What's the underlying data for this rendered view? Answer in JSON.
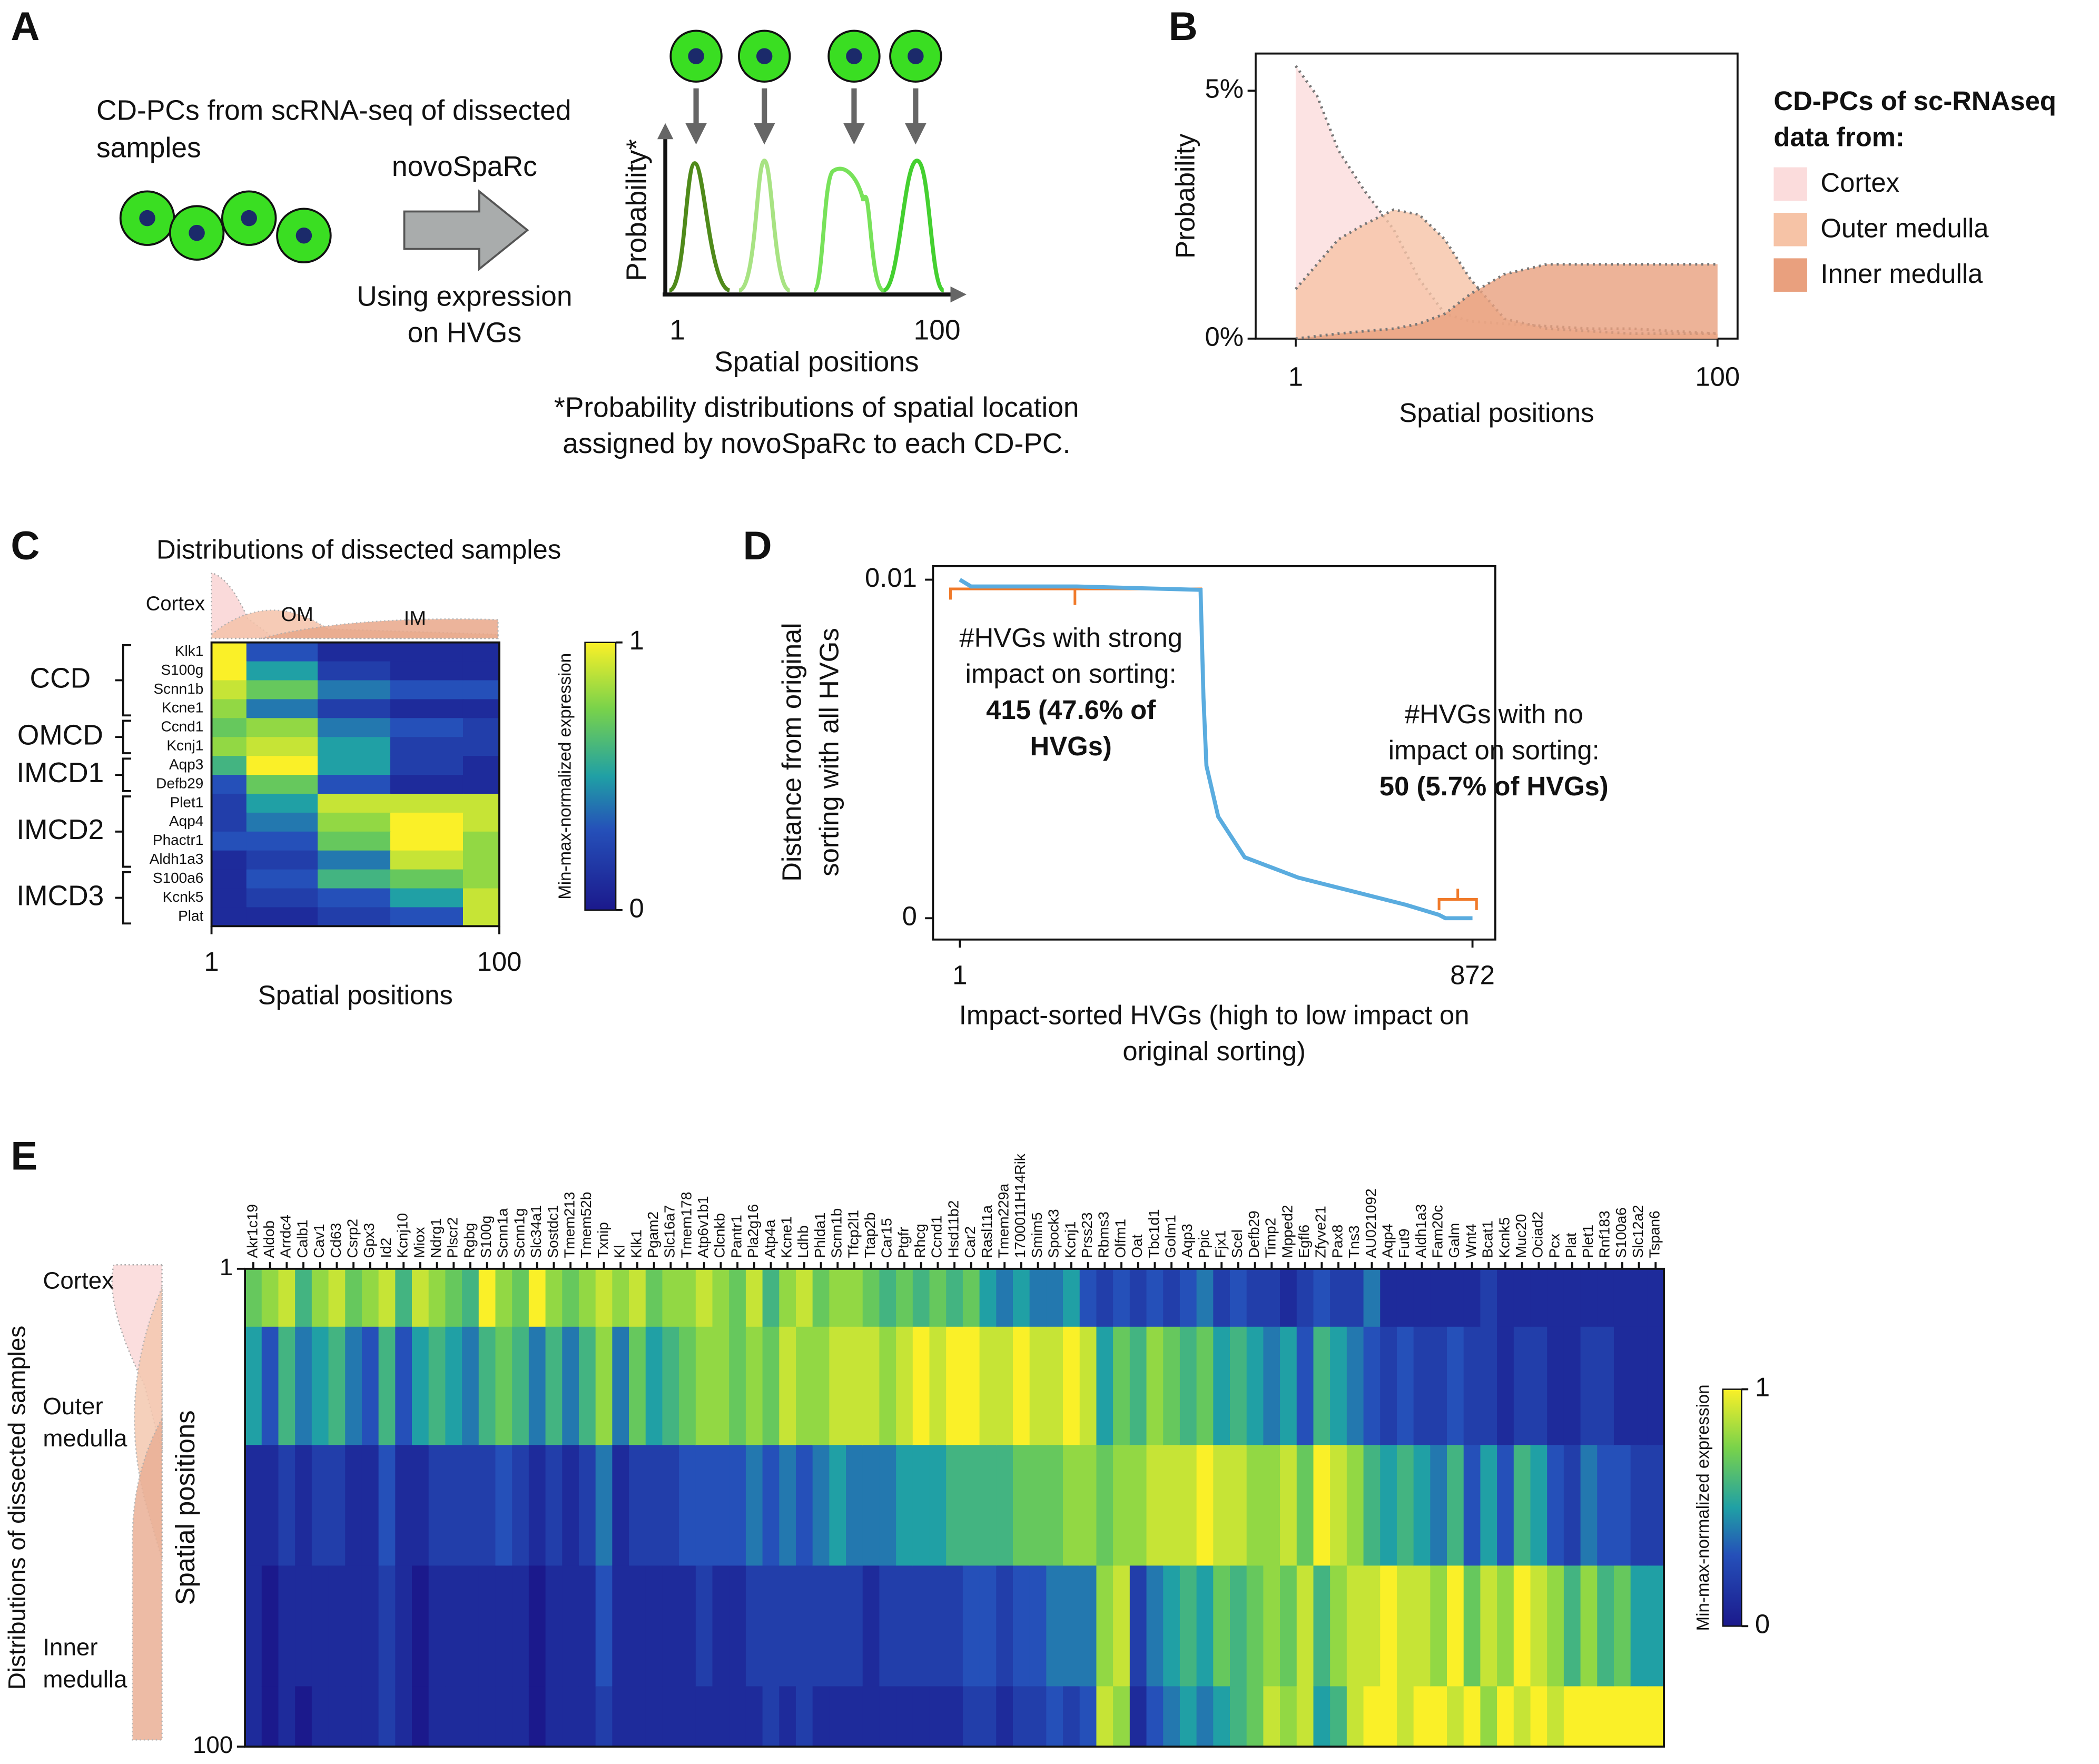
{
  "diagram": {
    "panel_label": "A",
    "cells_caption": [
      "CD-PCs from scRNA-seq of dissected",
      "samples"
    ],
    "method": "novoSpaRc",
    "method_caption": [
      "Using expression",
      "on HVGs"
    ],
    "axis_y_label": "Probability*",
    "axis_x_label": "Spatial positions",
    "axis_x_ticks": [
      "1",
      "100"
    ],
    "footnote": [
      "*Probability distributions of spatial location",
      "assigned by novoSpaRc to each CD-PC."
    ]
  },
  "chart_data": [
    {
      "panel_label": "B",
      "type": "area",
      "x": [
        1,
        6,
        11,
        17,
        24,
        30,
        36,
        42,
        50,
        60,
        70,
        80,
        90,
        100
      ],
      "series": [
        {
          "name": "Cortex",
          "color": "#fbdcdc",
          "values": [
            5.5,
            4.9,
            3.8,
            3.0,
            2.2,
            1.2,
            0.5,
            0.35,
            0.3,
            0.25,
            0.2,
            0.2,
            0.15,
            0.1
          ]
        },
        {
          "name": "Outer medulla",
          "color": "#f6c3a6",
          "values": [
            1.0,
            1.5,
            2.0,
            2.3,
            2.6,
            2.5,
            2.0,
            1.2,
            0.4,
            0.2,
            0.15,
            0.1,
            0.1,
            0.1
          ]
        },
        {
          "name": "Inner medulla",
          "color": "#e9a07e",
          "values": [
            0,
            0.05,
            0.1,
            0.15,
            0.2,
            0.3,
            0.5,
            0.9,
            1.3,
            1.5,
            1.5,
            1.5,
            1.5,
            1.5
          ]
        }
      ],
      "xlabel": "Spatial positions",
      "ylabel": "Probability",
      "xlim": [
        -8.4,
        104.7
      ],
      "ylim": [
        0,
        5.75
      ],
      "xticks": [
        1,
        100
      ],
      "yticks": [
        {
          "value": 0,
          "label": "0%"
        },
        {
          "value": 5,
          "label": "5%"
        }
      ],
      "legend_title": [
        "CD-PCs of sc-RNAseq",
        "data from:"
      ],
      "legend": "right"
    },
    {
      "panel_label": "C",
      "type": "heatmap",
      "title": "Distributions of dissected samples",
      "sample_labels": [
        "Cortex",
        "OM",
        "IM"
      ],
      "x": [
        1,
        25,
        50,
        75,
        100
      ],
      "xlim": [
        1,
        100
      ],
      "xticks": [
        1,
        100
      ],
      "xlabel": "Spatial positions",
      "groups": [
        {
          "name": "CCD",
          "genes": [
            "Klk1",
            "S100g",
            "Scnn1b",
            "Kcne1"
          ],
          "values": [
            [
              1,
              0.3,
              0.1,
              0.1,
              0.1
            ],
            [
              1,
              0.5,
              0.2,
              0.1,
              0.1
            ],
            [
              0.9,
              0.7,
              0.4,
              0.3,
              0.3
            ],
            [
              0.8,
              0.4,
              0.2,
              0.1,
              0.1
            ]
          ]
        },
        {
          "name": "OMCD",
          "genes": [
            "Ccnd1",
            "Kcnj1"
          ],
          "values": [
            [
              0.7,
              0.8,
              0.4,
              0.3,
              0.2
            ],
            [
              0.8,
              0.9,
              0.5,
              0.2,
              0.2
            ]
          ]
        },
        {
          "name": "IMCD1",
          "genes": [
            "Aqp3",
            "Defb29"
          ],
          "values": [
            [
              0.6,
              1,
              0.5,
              0.2,
              0.1
            ],
            [
              0.3,
              0.7,
              0.3,
              0.1,
              0.1
            ]
          ]
        },
        {
          "name": "IMCD2",
          "genes": [
            "Plet1",
            "Aqp4",
            "Phactr1",
            "Aldh1a3"
          ],
          "values": [
            [
              0.2,
              0.5,
              0.9,
              0.9,
              0.9
            ],
            [
              0.2,
              0.4,
              0.8,
              1,
              0.9
            ],
            [
              0.3,
              0.3,
              0.7,
              1,
              0.8
            ],
            [
              0.1,
              0.2,
              0.4,
              0.9,
              0.8
            ]
          ]
        },
        {
          "name": "IMCD3",
          "genes": [
            "S100a6",
            "Kcnk5",
            "Plat"
          ],
          "values": [
            [
              0.1,
              0.3,
              0.6,
              0.7,
              0.8
            ],
            [
              0.1,
              0.2,
              0.3,
              0.5,
              0.9
            ],
            [
              0.1,
              0.1,
              0.2,
              0.3,
              0.9
            ]
          ]
        }
      ],
      "colorbar": {
        "label": "Min-max-normalized expression",
        "ticks": [
          0,
          1
        ]
      }
    },
    {
      "panel_label": "D",
      "type": "line",
      "x": [
        1,
        20,
        200,
        410,
        415,
        420,
        440,
        485,
        576,
        667,
        758,
        815,
        826,
        872
      ],
      "values": [
        0.01,
        0.0098,
        0.0098,
        0.0097,
        0.0065,
        0.0045,
        0.003,
        0.0018,
        0.0012,
        0.0008,
        0.0004,
        0.0001,
        0,
        0
      ],
      "color": "#5aacdf",
      "xlim": [
        -44.5,
        910.7
      ],
      "ylim": [
        -0.00063,
        0.0104
      ],
      "xticks": [
        1,
        872
      ],
      "yticks": [
        0,
        0.01
      ],
      "xlabel": [
        "Impact-sorted HVGs (high to low impact on",
        "original sorting)"
      ],
      "ylabel": [
        "Distance from original",
        "sorting with all HVGs"
      ],
      "annotations": [
        {
          "text": [
            "#HVGs with strong",
            "impact on sorting:"
          ],
          "bold": [
            "415 (47.6% of",
            "HVGs)"
          ]
        },
        {
          "text": [
            "#HVGs with no",
            "impact on sorting:"
          ],
          "bold": [
            "50 (5.7% of HVGs)"
          ]
        }
      ]
    },
    {
      "panel_label": "E",
      "type": "heatmap",
      "categories": [
        "Akr1c19",
        "Aldob",
        "Arrdc4",
        "Calb1",
        "Cav1",
        "Cd63",
        "Csrp2",
        "Gpx3",
        "Id2",
        "Kcnj10",
        "Miox",
        "Ndrg1",
        "Plscr2",
        "Rgbg",
        "S100g",
        "Scnn1a",
        "Scnn1g",
        "Slc34a1",
        "Sostdc1",
        "Tmem213",
        "Tmem52b",
        "Txnip",
        "Kl",
        "Klk1",
        "Pgam2",
        "Slc16a7",
        "Tmem178",
        "Atp6v1b1",
        "Clcnkb",
        "Pantr1",
        "Pla2g16",
        "Atp4a",
        "Kcne1",
        "Ldhb",
        "Phlda1",
        "Scnn1b",
        "Tfcp2l1",
        "Ttap2b",
        "Car15",
        "Ptgfr",
        "Rhcg",
        "Ccnd1",
        "Hsd11b2",
        "Car2",
        "Rasl11a",
        "Tmem229a",
        "1700011H14Rik",
        "Smim5",
        "Spock3",
        "Kcnj1",
        "Prss23",
        "Rbms3",
        "Olfm1",
        "Oat",
        "Tbc1d1",
        "Golm1",
        "Aqp3",
        "Ppic",
        "Fjx1",
        "Scel",
        "Defb29",
        "Timp2",
        "Mpped2",
        "Egfl6",
        "Zfyve21",
        "Pax8",
        "Tns3",
        "AU021092",
        "Aqp4",
        "Fut9",
        "Aldh1a3",
        "Fam20c",
        "Galm",
        "Wnt4",
        "Bcat1",
        "Kcnk5",
        "Muc20",
        "Ociad2",
        "Pcx",
        "Plat",
        "Plet1",
        "Rnf183",
        "S100a6",
        "Slc12a2",
        "Tspan6"
      ],
      "y": [
        1,
        25,
        50,
        75,
        100
      ],
      "ylim": [
        1,
        100
      ],
      "yticks": [
        1,
        100
      ],
      "ylabel": "Spatial positions",
      "values": [
        [
          0.7,
          0.5,
          0.1,
          0.1,
          0.1
        ],
        [
          0.8,
          0.3,
          0.1,
          0,
          0
        ],
        [
          0.9,
          0.6,
          0.2,
          0.1,
          0.1
        ],
        [
          0.6,
          0.4,
          0.1,
          0.1,
          0
        ],
        [
          0.8,
          0.5,
          0.2,
          0.1,
          0.1
        ],
        [
          0.9,
          0.6,
          0.2,
          0.1,
          0.1
        ],
        [
          0.7,
          0.4,
          0.1,
          0.1,
          0.1
        ],
        [
          0.8,
          0.3,
          0.1,
          0.1,
          0.1
        ],
        [
          0.9,
          0.6,
          0.3,
          0.2,
          0.2
        ],
        [
          0.6,
          0.3,
          0.1,
          0.1,
          0.1
        ],
        [
          0.9,
          0.5,
          0.1,
          0,
          0
        ],
        [
          0.8,
          0.6,
          0.2,
          0.1,
          0.1
        ],
        [
          0.7,
          0.5,
          0.2,
          0.1,
          0.1
        ],
        [
          0.6,
          0.4,
          0.2,
          0.1,
          0.1
        ],
        [
          1,
          0.6,
          0.2,
          0.1,
          0.1
        ],
        [
          0.8,
          0.7,
          0.3,
          0.1,
          0.1
        ],
        [
          0.7,
          0.6,
          0.2,
          0.1,
          0.1
        ],
        [
          1,
          0.4,
          0.1,
          0,
          0
        ],
        [
          0.8,
          0.6,
          0.2,
          0.1,
          0.1
        ],
        [
          0.7,
          0.4,
          0.1,
          0.1,
          0.1
        ],
        [
          0.8,
          0.6,
          0.2,
          0.1,
          0.1
        ],
        [
          0.9,
          0.8,
          0.4,
          0.3,
          0.2
        ],
        [
          0.8,
          0.4,
          0.1,
          0.1,
          0.1
        ],
        [
          0.9,
          0.7,
          0.2,
          0.1,
          0.1
        ],
        [
          0.7,
          0.5,
          0.2,
          0.1,
          0.1
        ],
        [
          0.8,
          0.6,
          0.2,
          0.1,
          0.1
        ],
        [
          0.8,
          0.7,
          0.3,
          0.1,
          0.1
        ],
        [
          0.9,
          0.8,
          0.3,
          0.2,
          0.1
        ],
        [
          0.8,
          0.8,
          0.3,
          0.1,
          0.1
        ],
        [
          0.7,
          0.7,
          0.3,
          0.1,
          0.1
        ],
        [
          0.9,
          0.8,
          0.4,
          0.2,
          0.1
        ],
        [
          0.6,
          0.7,
          0.3,
          0.2,
          0.2
        ],
        [
          0.8,
          0.9,
          0.4,
          0.2,
          0.1
        ],
        [
          0.9,
          0.8,
          0.3,
          0.2,
          0.2
        ],
        [
          0.7,
          0.8,
          0.4,
          0.2,
          0.1
        ],
        [
          0.8,
          0.9,
          0.5,
          0.2,
          0.1
        ],
        [
          0.8,
          0.9,
          0.4,
          0.2,
          0.1
        ],
        [
          0.7,
          0.9,
          0.4,
          0.1,
          0.1
        ],
        [
          0.6,
          0.8,
          0.4,
          0.2,
          0.1
        ],
        [
          0.7,
          0.9,
          0.5,
          0.2,
          0.1
        ],
        [
          0.6,
          1,
          0.5,
          0.2,
          0.1
        ],
        [
          0.7,
          0.9,
          0.5,
          0.2,
          0.1
        ],
        [
          0.6,
          1,
          0.6,
          0.2,
          0.1
        ],
        [
          0.7,
          1,
          0.6,
          0.3,
          0.2
        ],
        [
          0.5,
          0.9,
          0.6,
          0.3,
          0.2
        ],
        [
          0.4,
          0.9,
          0.6,
          0.2,
          0.1
        ],
        [
          0.5,
          1,
          0.7,
          0.3,
          0.2
        ],
        [
          0.4,
          0.9,
          0.7,
          0.3,
          0.2
        ],
        [
          0.4,
          0.9,
          0.7,
          0.4,
          0.3
        ],
        [
          0.5,
          1,
          0.8,
          0.4,
          0.2
        ],
        [
          0.3,
          0.9,
          0.8,
          0.4,
          0.3
        ],
        [
          0.2,
          0.5,
          0.7,
          0.8,
          0.9
        ],
        [
          0.3,
          0.7,
          0.8,
          0.9,
          0.8
        ],
        [
          0.2,
          0.6,
          0.8,
          0.2,
          0.1
        ],
        [
          0.3,
          0.8,
          0.9,
          0.4,
          0.3
        ],
        [
          0.2,
          0.7,
          0.9,
          0.5,
          0.4
        ],
        [
          0.3,
          0.6,
          0.9,
          0.6,
          0.5
        ],
        [
          0.4,
          0.7,
          1,
          0.5,
          0.4
        ],
        [
          0.2,
          0.5,
          0.9,
          0.7,
          0.5
        ],
        [
          0.3,
          0.6,
          0.9,
          0.6,
          0.6
        ],
        [
          0.2,
          0.5,
          0.8,
          0.7,
          0.7
        ],
        [
          0.2,
          0.4,
          0.8,
          0.8,
          0.9
        ],
        [
          0.1,
          0.5,
          0.9,
          0.7,
          0.8
        ],
        [
          0.2,
          0.3,
          0.7,
          0.9,
          0.9
        ],
        [
          0.3,
          0.6,
          1,
          0.6,
          0.5
        ],
        [
          0.2,
          0.5,
          0.9,
          0.8,
          0.6
        ],
        [
          0.2,
          0.4,
          0.8,
          0.9,
          0.9
        ],
        [
          0.4,
          0.3,
          0.6,
          0.9,
          1
        ],
        [
          0.1,
          0.2,
          0.5,
          1,
          1
        ],
        [
          0.1,
          0.3,
          0.6,
          0.9,
          0.9
        ],
        [
          0.1,
          0.2,
          0.5,
          0.9,
          1
        ],
        [
          0.1,
          0.2,
          0.4,
          0.8,
          1
        ],
        [
          0.1,
          0.3,
          0.6,
          1,
          0.9
        ],
        [
          0.1,
          0.2,
          0.3,
          0.7,
          1
        ],
        [
          0.2,
          0.2,
          0.5,
          0.9,
          0.8
        ],
        [
          0.1,
          0.1,
          0.3,
          0.8,
          1
        ],
        [
          0.1,
          0.2,
          0.6,
          1,
          0.9
        ],
        [
          0.1,
          0.2,
          0.5,
          0.9,
          1
        ],
        [
          0.1,
          0.1,
          0.3,
          0.8,
          0.9
        ],
        [
          0.1,
          0.1,
          0.2,
          0.6,
          1
        ],
        [
          0.1,
          0.2,
          0.4,
          0.8,
          1
        ],
        [
          0.1,
          0.2,
          0.3,
          0.6,
          1
        ],
        [
          0.1,
          0.1,
          0.3,
          0.7,
          1
        ],
        [
          0.1,
          0.1,
          0.2,
          0.5,
          1
        ],
        [
          0.1,
          0.1,
          0.2,
          0.5,
          1
        ]
      ],
      "sample_labels": [
        [
          "Cortex"
        ],
        [
          "Outer",
          "medulla"
        ],
        [
          "Inner",
          "medulla"
        ]
      ],
      "sample_axis_label": "Distributions of dissected samples",
      "colorbar": {
        "label": "Min-max-normalized expression",
        "ticks": [
          0,
          1
        ]
      }
    }
  ]
}
